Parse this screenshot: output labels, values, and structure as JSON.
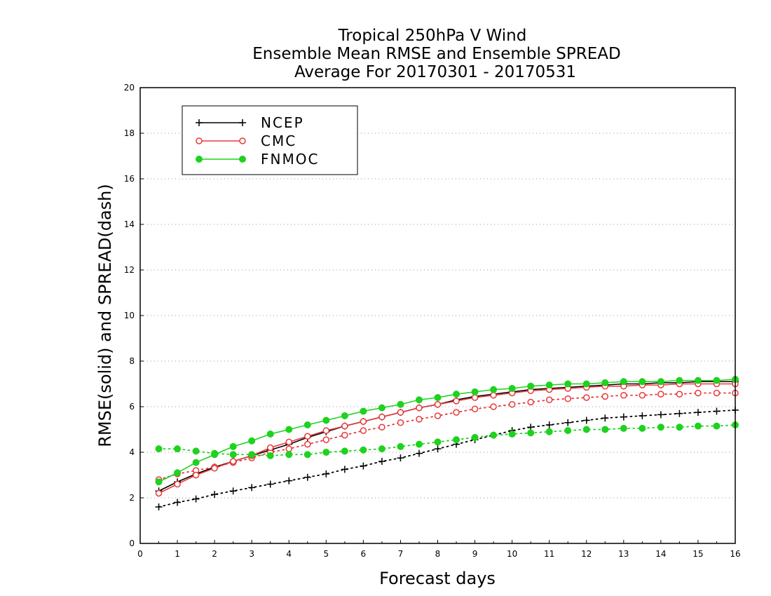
{
  "chart_data": {
    "type": "line",
    "title": [
      "Tropical 250hPa V Wind",
      "Ensemble Mean RMSE and Ensemble SPREAD",
      "Average For 20170301 - 20170531"
    ],
    "xlabel": "Forecast days",
    "ylabel": "RMSE(solid) and SPREAD(dash)",
    "xlim": [
      0,
      16
    ],
    "ylim": [
      0,
      20
    ],
    "xticks": [
      0,
      1,
      2,
      3,
      4,
      5,
      6,
      7,
      8,
      9,
      10,
      11,
      12,
      13,
      14,
      15,
      16
    ],
    "yticks": [
      0,
      2,
      4,
      6,
      8,
      10,
      12,
      14,
      16,
      18,
      20
    ],
    "grid": "horizontal dotted",
    "legend_position": "top-left",
    "x": [
      0.5,
      1,
      1.5,
      2,
      2.5,
      3,
      3.5,
      4,
      4.5,
      5,
      5.5,
      6,
      6.5,
      7,
      7.5,
      8,
      8.5,
      9,
      9.5,
      10,
      10.5,
      11,
      11.5,
      12,
      12.5,
      13,
      13.5,
      14,
      14.5,
      15,
      15.5,
      16
    ],
    "series": [
      {
        "name": "NCEP",
        "color": "#000000",
        "marker": "plus",
        "rmse": [
          2.3,
          2.7,
          3.05,
          3.35,
          3.6,
          3.85,
          4.1,
          4.35,
          4.65,
          4.9,
          5.15,
          5.35,
          5.55,
          5.75,
          5.95,
          6.1,
          6.3,
          6.45,
          6.55,
          6.65,
          6.75,
          6.8,
          6.85,
          6.9,
          6.95,
          7.0,
          7.0,
          7.05,
          7.05,
          7.1,
          7.1,
          7.1
        ],
        "spread": [
          1.6,
          1.8,
          1.95,
          2.15,
          2.3,
          2.45,
          2.6,
          2.75,
          2.9,
          3.05,
          3.25,
          3.4,
          3.6,
          3.75,
          3.95,
          4.15,
          4.35,
          4.55,
          4.75,
          4.95,
          5.1,
          5.2,
          5.3,
          5.4,
          5.5,
          5.55,
          5.6,
          5.65,
          5.7,
          5.75,
          5.8,
          5.85
        ]
      },
      {
        "name": "CMC",
        "color": "#e8393b",
        "marker": "open-circle",
        "rmse": [
          2.2,
          2.6,
          3.0,
          3.3,
          3.6,
          3.85,
          4.2,
          4.45,
          4.7,
          4.95,
          5.15,
          5.35,
          5.55,
          5.75,
          5.95,
          6.1,
          6.25,
          6.4,
          6.5,
          6.6,
          6.7,
          6.75,
          6.8,
          6.85,
          6.9,
          6.9,
          6.95,
          6.95,
          7.0,
          7.0,
          7.0,
          7.0
        ],
        "spread": [
          2.8,
          3.05,
          3.2,
          3.35,
          3.55,
          3.75,
          4.0,
          4.15,
          4.35,
          4.55,
          4.75,
          4.95,
          5.1,
          5.3,
          5.45,
          5.6,
          5.75,
          5.9,
          6.0,
          6.1,
          6.2,
          6.3,
          6.35,
          6.4,
          6.45,
          6.5,
          6.5,
          6.55,
          6.55,
          6.6,
          6.6,
          6.6
        ]
      },
      {
        "name": "FNMOC",
        "color": "#1ed21e",
        "marker": "filled-circle",
        "rmse": [
          2.7,
          3.1,
          3.55,
          3.9,
          4.25,
          4.5,
          4.8,
          5.0,
          5.2,
          5.4,
          5.6,
          5.8,
          5.95,
          6.1,
          6.3,
          6.4,
          6.55,
          6.65,
          6.75,
          6.8,
          6.9,
          6.95,
          7.0,
          7.0,
          7.05,
          7.1,
          7.1,
          7.1,
          7.15,
          7.15,
          7.15,
          7.2
        ],
        "spread": [
          4.15,
          4.15,
          4.05,
          3.95,
          3.9,
          3.9,
          3.85,
          3.9,
          3.9,
          4.0,
          4.05,
          4.1,
          4.15,
          4.25,
          4.35,
          4.45,
          4.55,
          4.65,
          4.75,
          4.8,
          4.85,
          4.9,
          4.95,
          5.0,
          5.0,
          5.05,
          5.05,
          5.1,
          5.1,
          5.15,
          5.15,
          5.2
        ]
      }
    ]
  }
}
